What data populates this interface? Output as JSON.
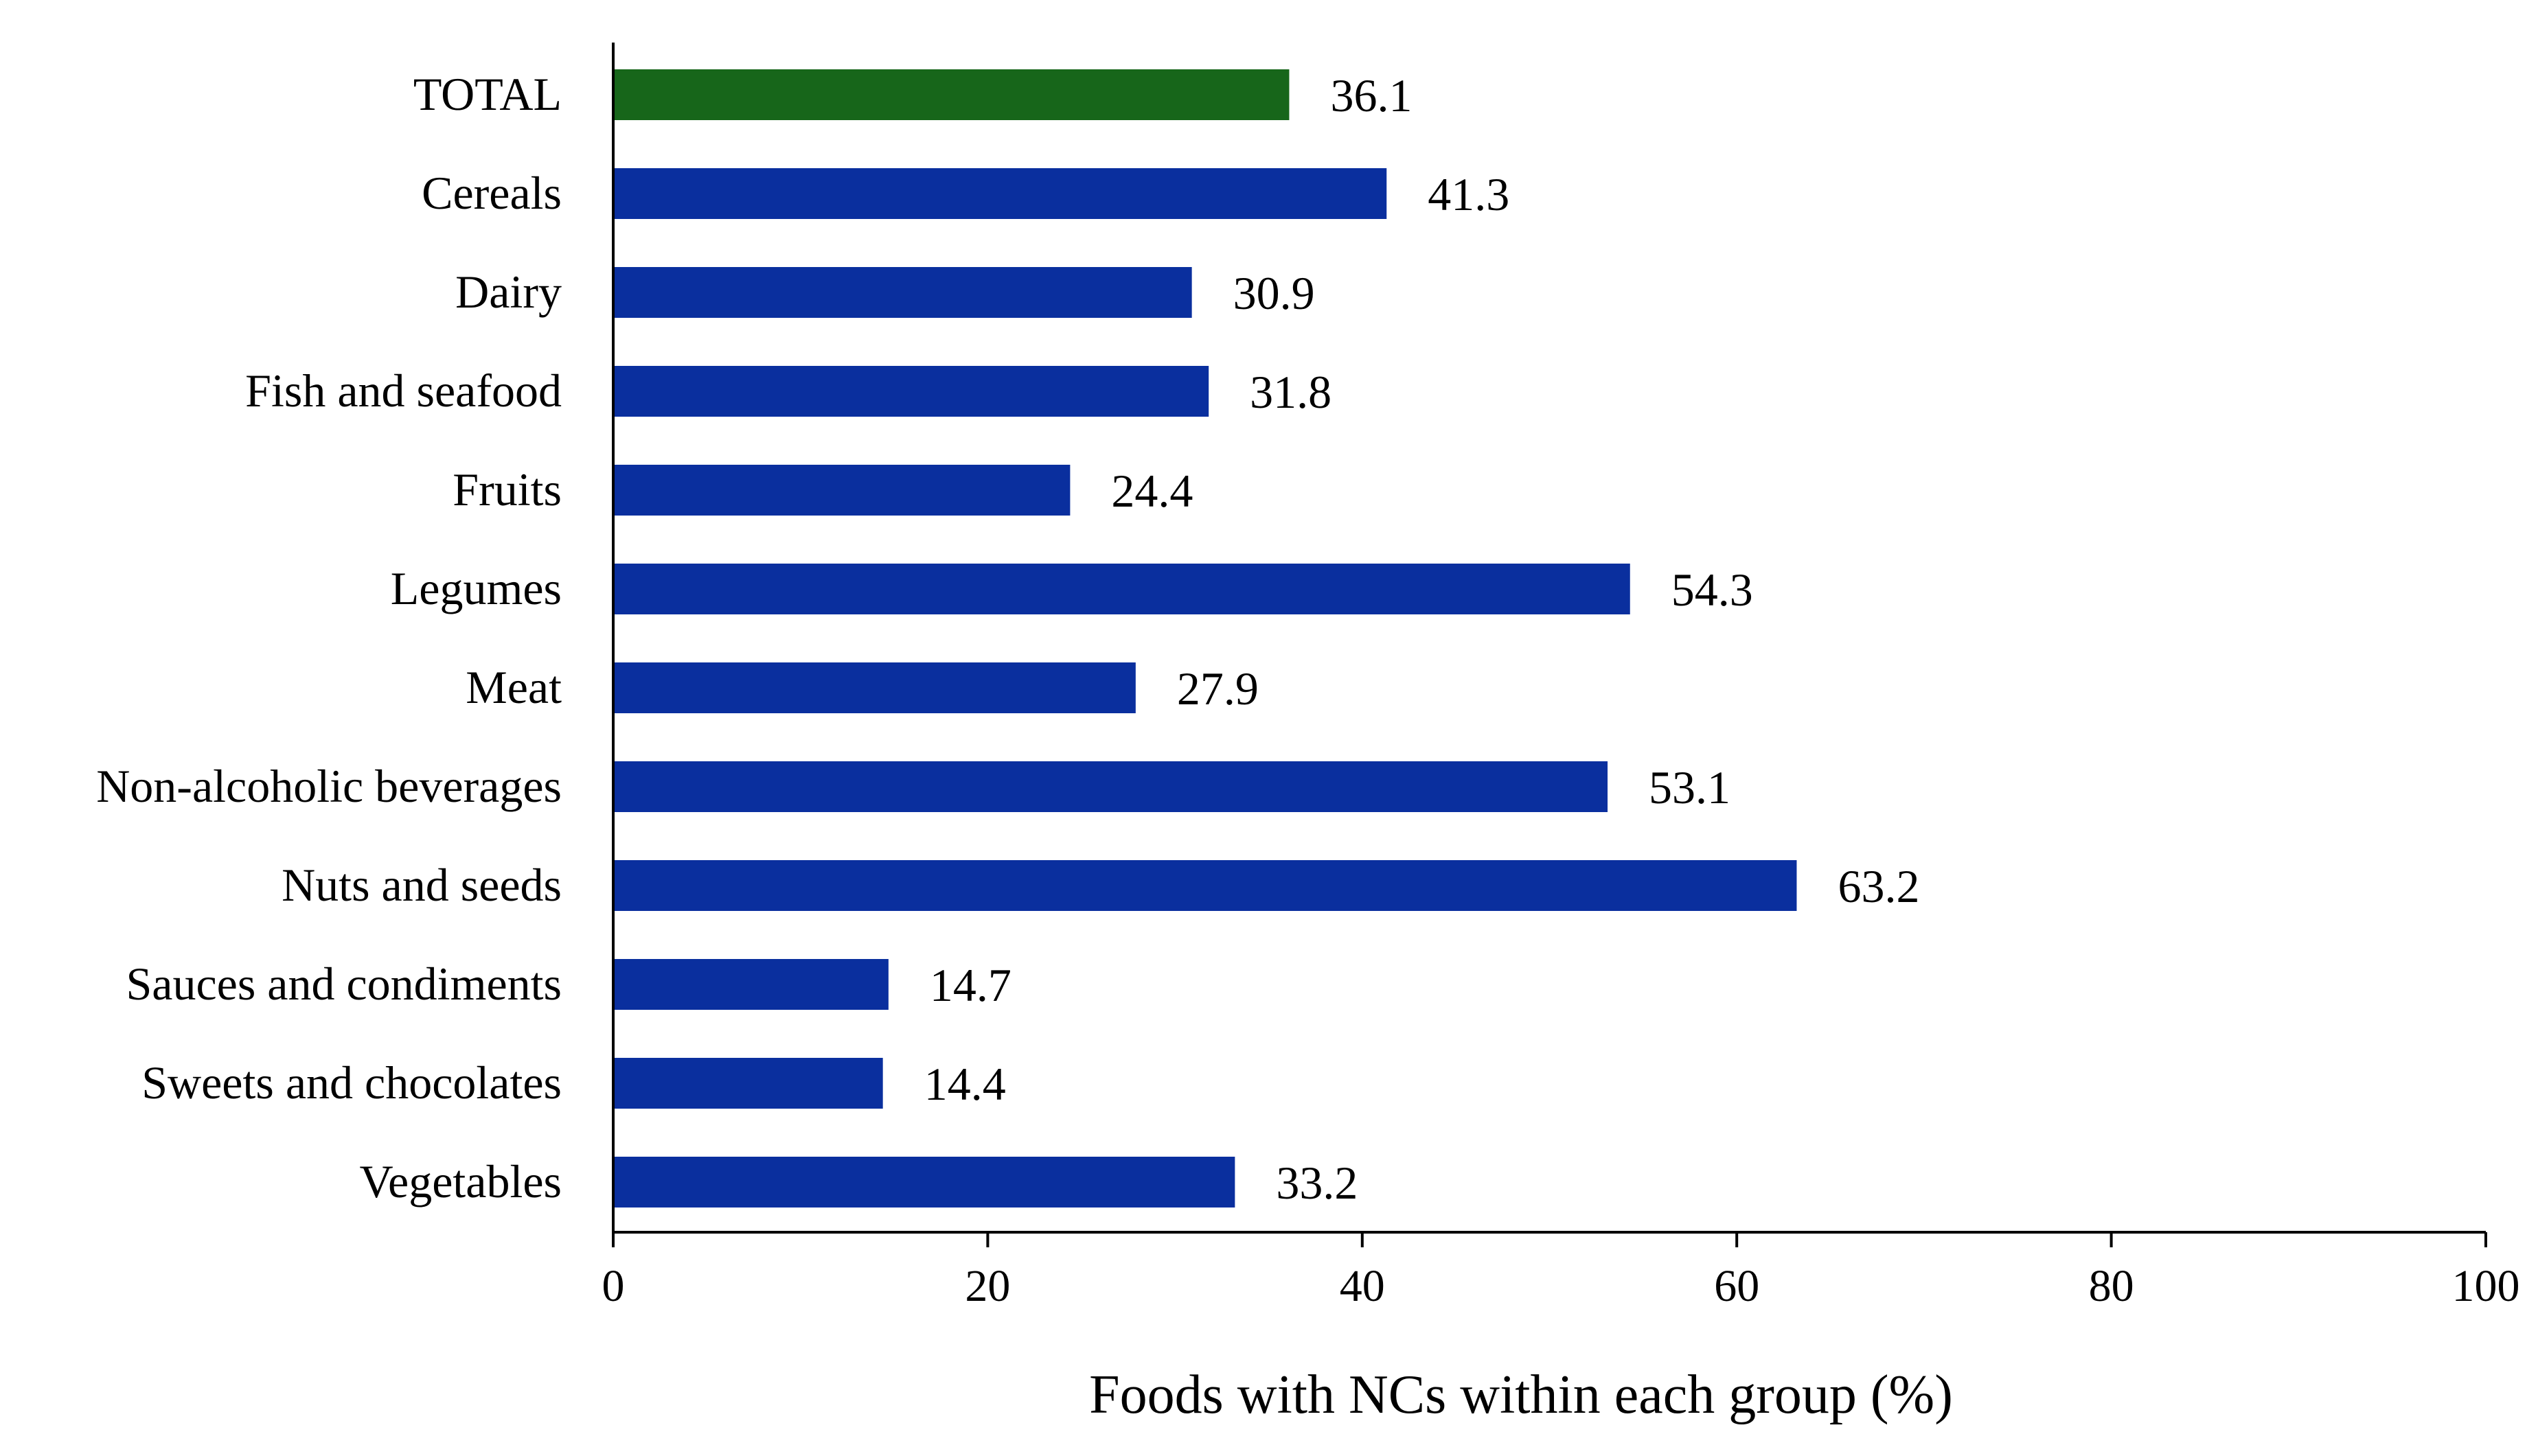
{
  "chart_data": {
    "type": "bar",
    "orientation": "horizontal",
    "title": "",
    "xlabel": "Foods with NCs within each group (%)",
    "ylabel": "",
    "xlim": [
      0,
      100
    ],
    "xticks": [
      0,
      20,
      40,
      60,
      80,
      100
    ],
    "grid": false,
    "legend": "none",
    "categories": [
      "TOTAL",
      "Cereals",
      "Dairy",
      "Fish and seafood",
      "Fruits",
      "Legumes",
      "Meat",
      "Non-alcoholic beverages",
      "Nuts and seeds",
      "Sauces and condiments",
      "Sweets and chocolates",
      "Vegetables"
    ],
    "values": [
      36.1,
      41.3,
      30.9,
      31.8,
      24.4,
      54.3,
      27.9,
      53.1,
      63.2,
      14.7,
      14.4,
      33.2
    ],
    "value_labels": [
      "36.1",
      "41.3",
      "30.9",
      "31.8",
      "24.4",
      "54.3",
      "27.9",
      "53.1",
      "63.2",
      "14.7",
      "14.4",
      "33.2"
    ],
    "colors": {
      "total_bar": "#17661a",
      "group_bar": "#0a2f9e",
      "axis": "#000000"
    }
  }
}
